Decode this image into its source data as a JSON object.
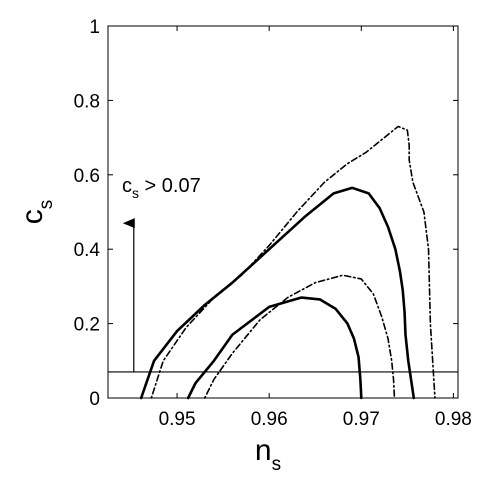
{
  "chart_data": {
    "type": "line",
    "title": "",
    "xlabel": {
      "main": "n",
      "sub": "s"
    },
    "ylabel": {
      "main": "c",
      "sub": "s"
    },
    "xlim": [
      0.9425,
      0.9805
    ],
    "ylim": [
      0,
      1
    ],
    "grid": false,
    "legend": "none",
    "x_ticks": [
      0.95,
      0.96,
      0.97,
      0.98
    ],
    "x_tick_labels": [
      "0.95",
      "0.96",
      "0.97",
      "0.98"
    ],
    "y_ticks": [
      0,
      0.2,
      0.4,
      0.6,
      0.8,
      1
    ],
    "y_tick_labels": [
      "0",
      "0.2",
      "0.4",
      "0.6",
      "0.8",
      "1"
    ],
    "annotation": {
      "text_main": "c",
      "text_sub": "s",
      "text_rest": " > 0.07",
      "arrow_x": 0.9453,
      "arrow_from_y": 0.07,
      "arrow_to_y": 0.47
    },
    "hline": {
      "y": 0.07
    },
    "series": [
      {
        "style": "solid",
        "x": [
          0.9461,
          0.9475,
          0.95,
          0.953,
          0.956,
          0.96,
          0.964,
          0.967,
          0.969,
          0.9708,
          0.972,
          0.9729,
          0.9737,
          0.9742,
          0.9745,
          0.9747,
          0.9748,
          0.9751,
          0.9754,
          0.9757
        ],
        "y": [
          0.0,
          0.1,
          0.18,
          0.25,
          0.31,
          0.4,
          0.49,
          0.55,
          0.565,
          0.55,
          0.51,
          0.46,
          0.4,
          0.34,
          0.29,
          0.23,
          0.17,
          0.1,
          0.05,
          0.0
        ]
      },
      {
        "style": "solid",
        "x": [
          0.9512,
          0.952,
          0.954,
          0.956,
          0.96,
          0.9635,
          0.9655,
          0.9672,
          0.9685,
          0.9692,
          0.9697,
          0.9699,
          0.97
        ],
        "y": [
          0.0,
          0.04,
          0.1,
          0.17,
          0.245,
          0.27,
          0.265,
          0.24,
          0.2,
          0.16,
          0.11,
          0.05,
          0.0
        ]
      },
      {
        "style": "dotted",
        "x": [
          0.9472,
          0.9485,
          0.951,
          0.954,
          0.957,
          0.96,
          0.963,
          0.966,
          0.9685,
          0.9705,
          0.972,
          0.974,
          0.975,
          0.9752,
          0.9752,
          0.9756,
          0.9768,
          0.9773,
          0.9774,
          0.9775,
          0.978
        ],
        "y": [
          0.0,
          0.1,
          0.19,
          0.27,
          0.33,
          0.41,
          0.5,
          0.58,
          0.63,
          0.66,
          0.69,
          0.73,
          0.72,
          0.68,
          0.64,
          0.58,
          0.5,
          0.4,
          0.3,
          0.2,
          0.0
        ]
      },
      {
        "style": "dotted",
        "x": [
          0.953,
          0.954,
          0.956,
          0.959,
          0.962,
          0.965,
          0.968,
          0.97,
          0.9713,
          0.9722,
          0.9729,
          0.9733,
          0.9735,
          0.9736
        ],
        "y": [
          0.0,
          0.05,
          0.12,
          0.21,
          0.27,
          0.31,
          0.33,
          0.32,
          0.28,
          0.22,
          0.16,
          0.1,
          0.05,
          0.0
        ]
      }
    ]
  }
}
